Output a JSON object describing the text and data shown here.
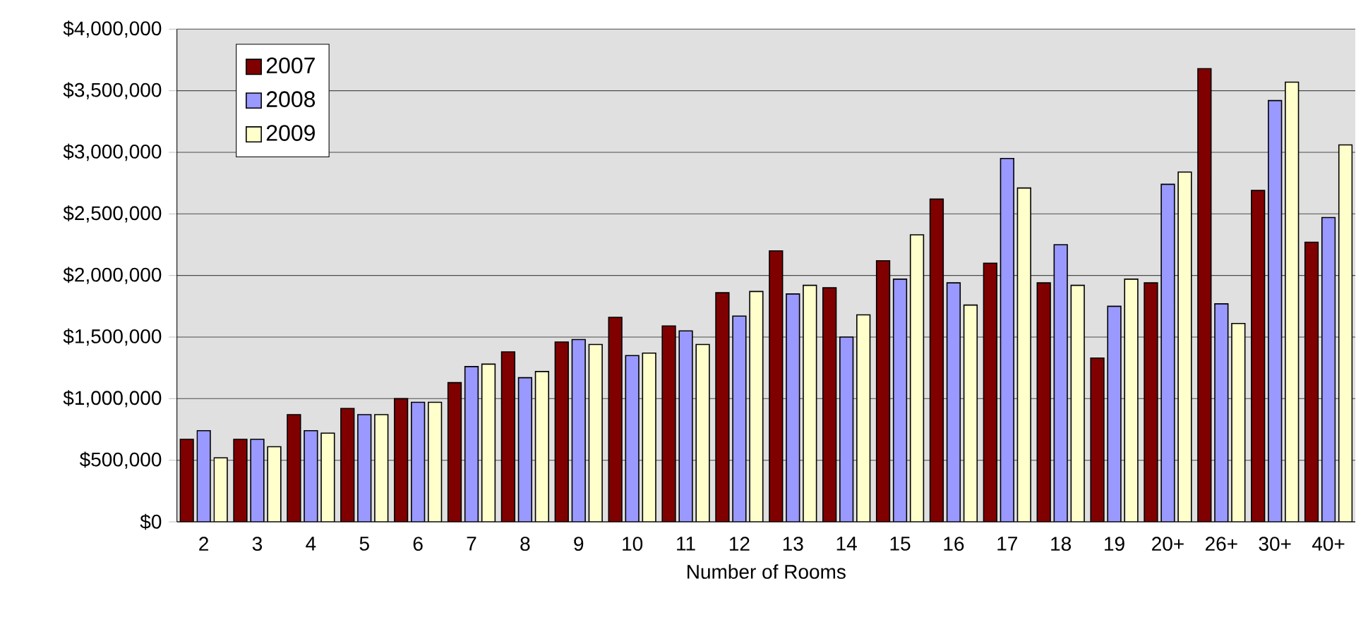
{
  "chart_data": {
    "type": "bar",
    "xlabel": "Number of Rooms",
    "categories": [
      "2",
      "3",
      "4",
      "5",
      "6",
      "7",
      "8",
      "9",
      "10",
      "11",
      "12",
      "13",
      "14",
      "15",
      "16",
      "17",
      "18",
      "19",
      "20+",
      "26+",
      "30+",
      "40+"
    ],
    "series": [
      {
        "name": "2007",
        "color": "#800000",
        "values": [
          670000,
          670000,
          870000,
          920000,
          1000000,
          1130000,
          1380000,
          1460000,
          1660000,
          1590000,
          1860000,
          2200000,
          1900000,
          2120000,
          2620000,
          2100000,
          1940000,
          1330000,
          1940000,
          3680000,
          2690000,
          2270000
        ]
      },
      {
        "name": "2008",
        "color": "#9999ff",
        "values": [
          740000,
          670000,
          740000,
          870000,
          970000,
          1260000,
          1170000,
          1480000,
          1350000,
          1550000,
          1670000,
          1850000,
          1500000,
          1970000,
          1940000,
          2950000,
          2250000,
          1750000,
          2740000,
          1770000,
          3420000,
          2470000
        ]
      },
      {
        "name": "2009",
        "color": "#ffffcc",
        "values": [
          520000,
          610000,
          720000,
          870000,
          970000,
          1280000,
          1220000,
          1440000,
          1370000,
          1440000,
          1870000,
          1920000,
          1680000,
          2330000,
          1760000,
          2710000,
          1920000,
          1970000,
          2840000,
          1610000,
          3570000,
          3060000
        ]
      }
    ],
    "ylim": [
      0,
      4000000
    ],
    "yticks": [
      {
        "value": 0,
        "label": "$0"
      },
      {
        "value": 500000,
        "label": "$500,000"
      },
      {
        "value": 1000000,
        "label": "$1,000,000"
      },
      {
        "value": 1500000,
        "label": "$1,500,000"
      },
      {
        "value": 2000000,
        "label": "$2,000,000"
      },
      {
        "value": 2500000,
        "label": "$2,500,000"
      },
      {
        "value": 3000000,
        "label": "$3,000,000"
      },
      {
        "value": 3500000,
        "label": "$3,500,000"
      },
      {
        "value": 4000000,
        "label": "$4,000,000"
      }
    ],
    "grid": "y",
    "legend": "top left"
  }
}
